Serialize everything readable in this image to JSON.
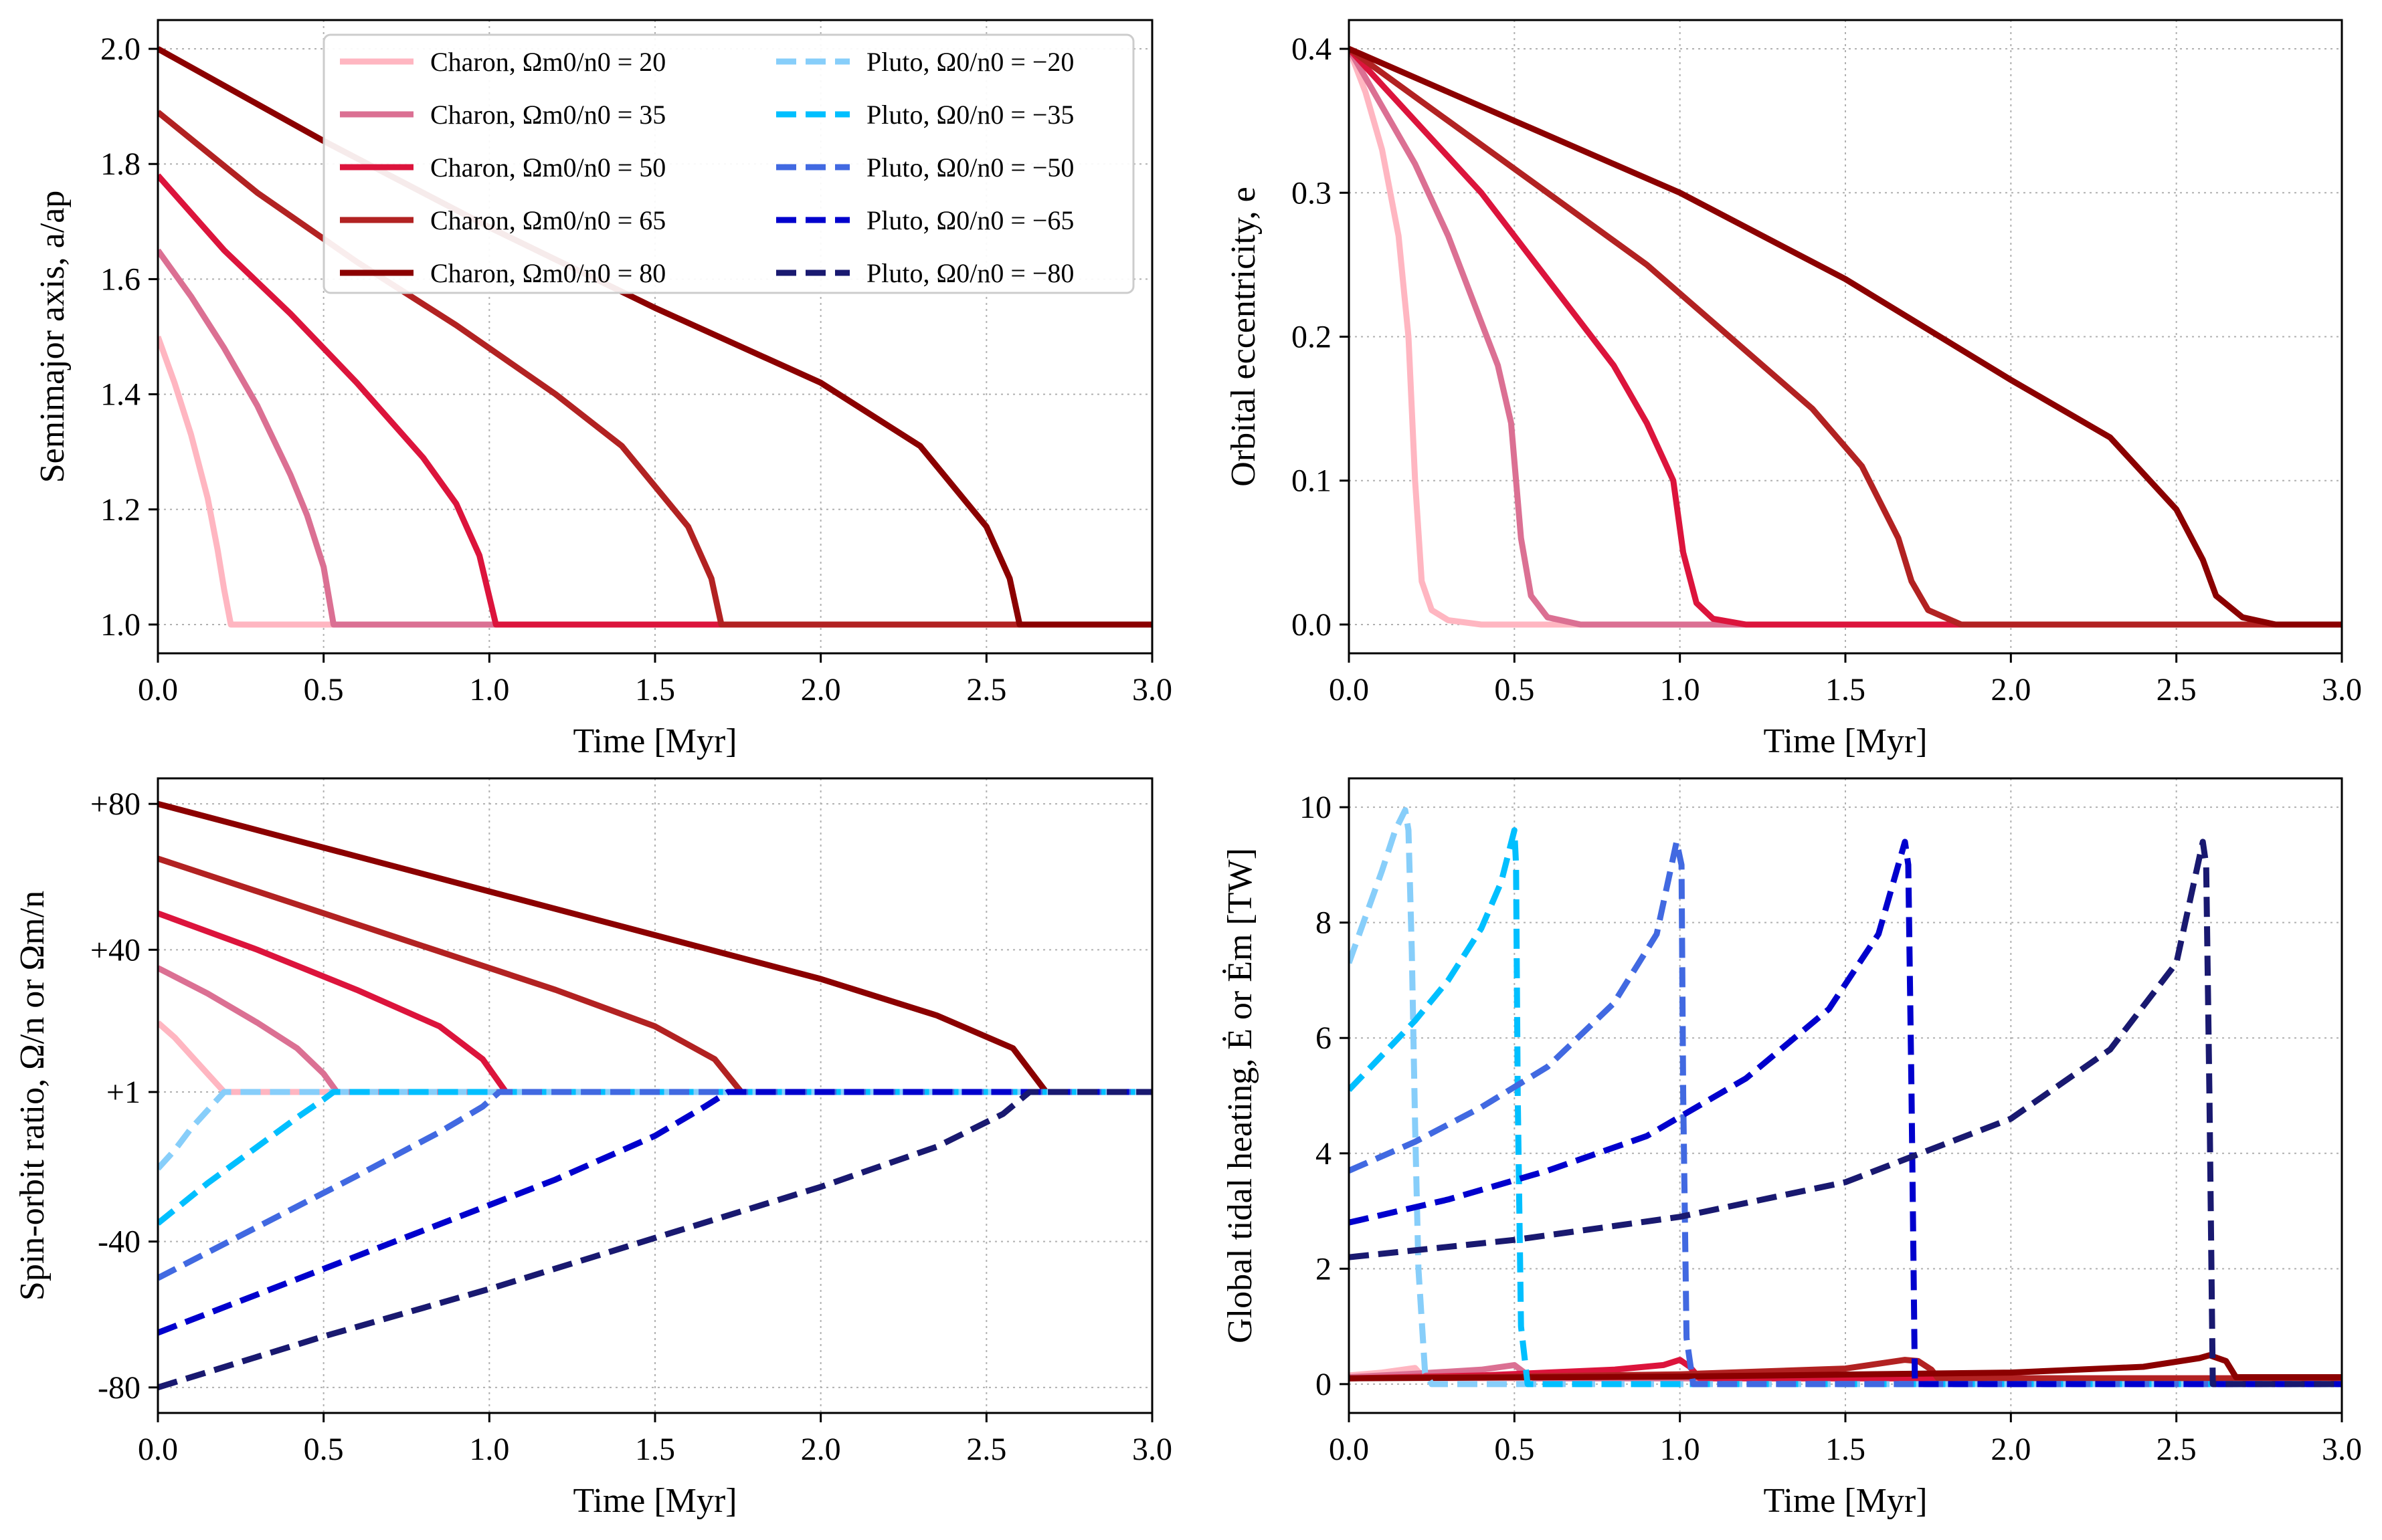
{
  "colors": {
    "charon": [
      "#ffb6c1",
      "#db7093",
      "#dc143c",
      "#b22222",
      "#8b0000"
    ],
    "pluto": [
      "#87cefa",
      "#00bfff",
      "#4169e1",
      "#0000cd",
      "#191970"
    ],
    "grid": "#b0b0b0"
  },
  "legend": {
    "placement": "upper center (top-left panel)",
    "charon": [
      "Charon, Ωm0/n0 = 20",
      "Charon, Ωm0/n0 = 35",
      "Charon, Ωm0/n0 = 50",
      "Charon, Ωm0/n0 = 65",
      "Charon, Ωm0/n0 = 80"
    ],
    "pluto": [
      "Pluto, Ω0/n0 = −20",
      "Pluto, Ω0/n0 = −35",
      "Pluto, Ω0/n0 = −50",
      "Pluto, Ω0/n0 = −65",
      "Pluto, Ω0/n0 = −80"
    ]
  },
  "chart_data": [
    {
      "type": "line",
      "panel": "top-left",
      "xlabel": "Time [Myr]",
      "ylabel": "Semimajor axis, a/ap",
      "xlim": [
        0,
        3
      ],
      "ylim": [
        0.95,
        2.05
      ],
      "xticks": [
        "0.0",
        "0.5",
        "1.0",
        "1.5",
        "2.0",
        "2.5",
        "3.0"
      ],
      "yticks": [
        "1.0",
        "1.2",
        "1.4",
        "1.6",
        "1.8",
        "2.0"
      ],
      "grid": true,
      "series": [
        {
          "name": "Charon, Ωm0/n0 = 20",
          "group": "charon",
          "style": "solid",
          "x": [
            0,
            0.05,
            0.1,
            0.15,
            0.18,
            0.2,
            0.22,
            3
          ],
          "y": [
            1.5,
            1.42,
            1.33,
            1.22,
            1.13,
            1.06,
            1.0,
            1.0
          ]
        },
        {
          "name": "Charon, Ωm0/n0 = 35",
          "group": "charon",
          "style": "solid",
          "x": [
            0,
            0.1,
            0.2,
            0.3,
            0.4,
            0.45,
            0.5,
            0.53,
            3
          ],
          "y": [
            1.65,
            1.57,
            1.48,
            1.38,
            1.26,
            1.19,
            1.1,
            1.0,
            1.0
          ]
        },
        {
          "name": "Charon, Ωm0/n0 = 50",
          "group": "charon",
          "style": "solid",
          "x": [
            0,
            0.2,
            0.4,
            0.6,
            0.8,
            0.9,
            0.97,
            1.02,
            3
          ],
          "y": [
            1.78,
            1.65,
            1.54,
            1.42,
            1.29,
            1.21,
            1.12,
            1.0,
            1.0
          ]
        },
        {
          "name": "Charon, Ωm0/n0 = 65",
          "group": "charon",
          "style": "solid",
          "x": [
            0,
            0.3,
            0.6,
            0.9,
            1.2,
            1.4,
            1.6,
            1.67,
            1.7,
            3
          ],
          "y": [
            1.89,
            1.75,
            1.63,
            1.52,
            1.4,
            1.31,
            1.17,
            1.08,
            1.0,
            1.0
          ]
        },
        {
          "name": "Charon, Ωm0/n0 = 80",
          "group": "charon",
          "style": "solid",
          "x": [
            0,
            0.5,
            1.0,
            1.5,
            2.0,
            2.3,
            2.5,
            2.57,
            2.6,
            3
          ],
          "y": [
            2.0,
            1.84,
            1.69,
            1.55,
            1.42,
            1.31,
            1.17,
            1.08,
            1.0,
            1.0
          ]
        }
      ]
    },
    {
      "type": "line",
      "panel": "top-right",
      "xlabel": "Time [Myr]",
      "ylabel": "Orbital eccentricity, e",
      "xlim": [
        0,
        3
      ],
      "ylim": [
        -0.02,
        0.42
      ],
      "xticks": [
        "0.0",
        "0.5",
        "1.0",
        "1.5",
        "2.0",
        "2.5",
        "3.0"
      ],
      "yticks": [
        "0.0",
        "0.1",
        "0.2",
        "0.3",
        "0.4"
      ],
      "grid": true,
      "series": [
        {
          "name": "Charon, Ωm0/n0 = 20",
          "group": "charon",
          "style": "solid",
          "x": [
            0,
            0.05,
            0.1,
            0.15,
            0.18,
            0.2,
            0.22,
            0.25,
            0.3,
            0.4,
            3
          ],
          "y": [
            0.4,
            0.37,
            0.33,
            0.27,
            0.2,
            0.1,
            0.03,
            0.01,
            0.003,
            0.0,
            0.0
          ]
        },
        {
          "name": "Charon, Ωm0/n0 = 35",
          "group": "charon",
          "style": "solid",
          "x": [
            0,
            0.1,
            0.2,
            0.3,
            0.4,
            0.45,
            0.49,
            0.52,
            0.55,
            0.6,
            0.7,
            3
          ],
          "y": [
            0.4,
            0.36,
            0.32,
            0.27,
            0.21,
            0.18,
            0.14,
            0.06,
            0.02,
            0.005,
            0.0,
            0.0
          ]
        },
        {
          "name": "Charon, Ωm0/n0 = 50",
          "group": "charon",
          "style": "solid",
          "x": [
            0,
            0.2,
            0.4,
            0.6,
            0.8,
            0.9,
            0.98,
            1.01,
            1.05,
            1.1,
            1.2,
            3
          ],
          "y": [
            0.4,
            0.35,
            0.3,
            0.24,
            0.18,
            0.14,
            0.1,
            0.05,
            0.015,
            0.004,
            0.0,
            0.0
          ]
        },
        {
          "name": "Charon, Ωm0/n0 = 65",
          "group": "charon",
          "style": "solid",
          "x": [
            0,
            0.3,
            0.6,
            0.9,
            1.2,
            1.4,
            1.55,
            1.66,
            1.7,
            1.75,
            1.85,
            3
          ],
          "y": [
            0.4,
            0.35,
            0.3,
            0.25,
            0.19,
            0.15,
            0.11,
            0.06,
            0.03,
            0.01,
            0.0,
            0.0
          ]
        },
        {
          "name": "Charon, Ωm0/n0 = 80",
          "group": "charon",
          "style": "solid",
          "x": [
            0,
            0.5,
            1.0,
            1.5,
            2.0,
            2.3,
            2.5,
            2.58,
            2.62,
            2.7,
            2.8,
            3
          ],
          "y": [
            0.4,
            0.35,
            0.3,
            0.24,
            0.17,
            0.13,
            0.08,
            0.045,
            0.02,
            0.005,
            0.0,
            0.0
          ]
        }
      ]
    },
    {
      "type": "line",
      "panel": "bottom-left",
      "xlabel": "Time [Myr]",
      "ylabel": "Spin-orbit ratio, Ω/n or Ωm/n",
      "xlim": [
        0,
        3
      ],
      "ylim": [
        -87,
        87
      ],
      "xticks": [
        "0.0",
        "0.5",
        "1.0",
        "1.5",
        "2.0",
        "2.5",
        "3.0"
      ],
      "ytick_values": [
        -80,
        -40,
        1,
        40,
        80
      ],
      "yticks": [
        "-80",
        "-40",
        "+1",
        "+40",
        "+80"
      ],
      "grid": true,
      "series": [
        {
          "name": "Charon, Ωm0/n0 = 20",
          "group": "charon",
          "style": "solid",
          "x": [
            0,
            0.05,
            0.1,
            0.15,
            0.2,
            3
          ],
          "y": [
            20,
            16,
            11,
            6,
            1,
            1
          ]
        },
        {
          "name": "Charon, Ωm0/n0 = 35",
          "group": "charon",
          "style": "solid",
          "x": [
            0,
            0.15,
            0.3,
            0.42,
            0.5,
            0.54,
            3
          ],
          "y": [
            35,
            28,
            20,
            13,
            6,
            1,
            1
          ]
        },
        {
          "name": "Charon, Ωm0/n0 = 50",
          "group": "charon",
          "style": "solid",
          "x": [
            0,
            0.3,
            0.6,
            0.85,
            0.98,
            1.05,
            3
          ],
          "y": [
            50,
            40,
            29,
            19,
            10,
            1,
            1
          ]
        },
        {
          "name": "Charon, Ωm0/n0 = 65",
          "group": "charon",
          "style": "solid",
          "x": [
            0,
            0.4,
            0.8,
            1.2,
            1.5,
            1.68,
            1.76,
            3
          ],
          "y": [
            65,
            53,
            41,
            29,
            19,
            10,
            1,
            1
          ]
        },
        {
          "name": "Charon, Ωm0/n0 = 80",
          "group": "charon",
          "style": "solid",
          "x": [
            0,
            0.5,
            1.0,
            1.5,
            2.0,
            2.35,
            2.58,
            2.68,
            3
          ],
          "y": [
            80,
            68,
            56,
            44,
            32,
            22,
            13,
            1,
            1
          ]
        },
        {
          "name": "Pluto, Ω0/n0 = −20",
          "group": "pluto",
          "style": "dashed",
          "x": [
            0,
            0.05,
            0.1,
            0.15,
            0.2,
            3
          ],
          "y": [
            -20,
            -15,
            -9,
            -4,
            1,
            1
          ]
        },
        {
          "name": "Pluto, Ω0/n0 = −35",
          "group": "pluto",
          "style": "dashed",
          "x": [
            0,
            0.15,
            0.3,
            0.42,
            0.5,
            0.53,
            3
          ],
          "y": [
            -35,
            -24,
            -14,
            -6,
            -1,
            1,
            1
          ]
        },
        {
          "name": "Pluto, Ω0/n0 = −50",
          "group": "pluto",
          "style": "dashed",
          "x": [
            0,
            0.3,
            0.6,
            0.85,
            0.98,
            1.03,
            3
          ],
          "y": [
            -50,
            -36,
            -22,
            -10,
            -3,
            1,
            1
          ]
        },
        {
          "name": "Pluto, Ω0/n0 = −65",
          "group": "pluto",
          "style": "dashed",
          "x": [
            0,
            0.4,
            0.8,
            1.2,
            1.5,
            1.65,
            1.72,
            3
          ],
          "y": [
            -65,
            -51,
            -37,
            -23,
            -11,
            -3,
            1,
            1
          ]
        },
        {
          "name": "Pluto, Ω0/n0 = −80",
          "group": "pluto",
          "style": "dashed",
          "x": [
            0,
            0.5,
            1.0,
            1.5,
            2.0,
            2.35,
            2.55,
            2.63,
            3
          ],
          "y": [
            -80,
            -66,
            -53,
            -39,
            -25,
            -14,
            -5,
            1,
            1
          ]
        }
      ]
    },
    {
      "type": "line",
      "panel": "bottom-right",
      "xlabel": "Time [Myr]",
      "ylabel": "Global tidal heating, Ė or Ėm [TW]",
      "xlim": [
        0,
        3
      ],
      "ylim": [
        -0.5,
        10.5
      ],
      "xticks": [
        "0.0",
        "0.5",
        "1.0",
        "1.5",
        "2.0",
        "2.5",
        "3.0"
      ],
      "yticks": [
        "0",
        "2",
        "4",
        "6",
        "8",
        "10"
      ],
      "grid": true,
      "series": [
        {
          "name": "Pluto, Ω0/n0 = −20",
          "group": "pluto",
          "style": "dashed",
          "x": [
            0,
            0.05,
            0.1,
            0.14,
            0.17,
            0.18,
            0.19,
            0.2,
            0.21,
            0.23,
            0.25,
            3
          ],
          "y": [
            7.3,
            8.1,
            8.9,
            9.6,
            9.95,
            9.6,
            7.5,
            4.5,
            2.0,
            0.2,
            0.0,
            0.0
          ]
        },
        {
          "name": "Pluto, Ω0/n0 = −35",
          "group": "pluto",
          "style": "dashed",
          "x": [
            0,
            0.1,
            0.2,
            0.3,
            0.4,
            0.46,
            0.5,
            0.505,
            0.51,
            0.52,
            0.54,
            3
          ],
          "y": [
            5.1,
            5.7,
            6.3,
            7.0,
            7.9,
            8.7,
            9.6,
            9.0,
            5.0,
            1.0,
            0.0,
            0.0
          ]
        },
        {
          "name": "Pluto, Ω0/n0 = −50",
          "group": "pluto",
          "style": "dashed",
          "x": [
            0,
            0.2,
            0.4,
            0.6,
            0.8,
            0.93,
            0.99,
            1.005,
            1.01,
            1.02,
            1.04,
            3
          ],
          "y": [
            3.7,
            4.2,
            4.8,
            5.5,
            6.6,
            7.8,
            9.4,
            9.0,
            5.0,
            0.8,
            0.0,
            0.0
          ]
        },
        {
          "name": "Pluto, Ω0/n0 = −65",
          "group": "pluto",
          "style": "dashed",
          "x": [
            0,
            0.3,
            0.6,
            0.9,
            1.2,
            1.45,
            1.6,
            1.68,
            1.69,
            1.7,
            1.71,
            3
          ],
          "y": [
            2.8,
            3.2,
            3.7,
            4.3,
            5.3,
            6.5,
            7.8,
            9.4,
            9.0,
            5.0,
            0.0,
            0.0
          ]
        },
        {
          "name": "Pluto, Ω0/n0 = −80",
          "group": "pluto",
          "style": "dashed",
          "x": [
            0,
            0.5,
            1.0,
            1.5,
            2.0,
            2.3,
            2.5,
            2.58,
            2.59,
            2.6,
            2.61,
            3
          ],
          "y": [
            2.2,
            2.5,
            2.9,
            3.5,
            4.6,
            5.8,
            7.3,
            9.4,
            9.0,
            5.0,
            0.0,
            0.0
          ]
        },
        {
          "name": "Charon, Ωm0/n0 = 20",
          "group": "charon",
          "style": "solid",
          "x": [
            0,
            0.1,
            0.2,
            0.22,
            0.25,
            3
          ],
          "y": [
            0.15,
            0.2,
            0.28,
            0.15,
            0.1,
            0.1
          ]
        },
        {
          "name": "Charon, Ωm0/n0 = 35",
          "group": "charon",
          "style": "solid",
          "x": [
            0,
            0.2,
            0.4,
            0.5,
            0.53,
            0.56,
            3
          ],
          "y": [
            0.12,
            0.18,
            0.25,
            0.33,
            0.2,
            0.1,
            0.1
          ]
        },
        {
          "name": "Charon, Ωm0/n0 = 50",
          "group": "charon",
          "style": "solid",
          "x": [
            0,
            0.4,
            0.8,
            0.95,
            1.0,
            1.03,
            1.06,
            3
          ],
          "y": [
            0.1,
            0.15,
            0.25,
            0.33,
            0.42,
            0.3,
            0.1,
            0.1
          ]
        },
        {
          "name": "Charon, Ωm0/n0 = 65",
          "group": "charon",
          "style": "solid",
          "x": [
            0,
            0.5,
            1.0,
            1.5,
            1.68,
            1.72,
            1.76,
            1.78,
            3
          ],
          "y": [
            0.1,
            0.13,
            0.17,
            0.27,
            0.42,
            0.4,
            0.25,
            0.1,
            0.1
          ]
        },
        {
          "name": "Charon, Ωm0/n0 = 80",
          "group": "charon",
          "style": "solid",
          "x": [
            0,
            1.0,
            2.0,
            2.4,
            2.57,
            2.6,
            2.65,
            2.68,
            3
          ],
          "y": [
            0.1,
            0.13,
            0.2,
            0.3,
            0.45,
            0.5,
            0.4,
            0.12,
            0.12
          ]
        }
      ]
    }
  ]
}
